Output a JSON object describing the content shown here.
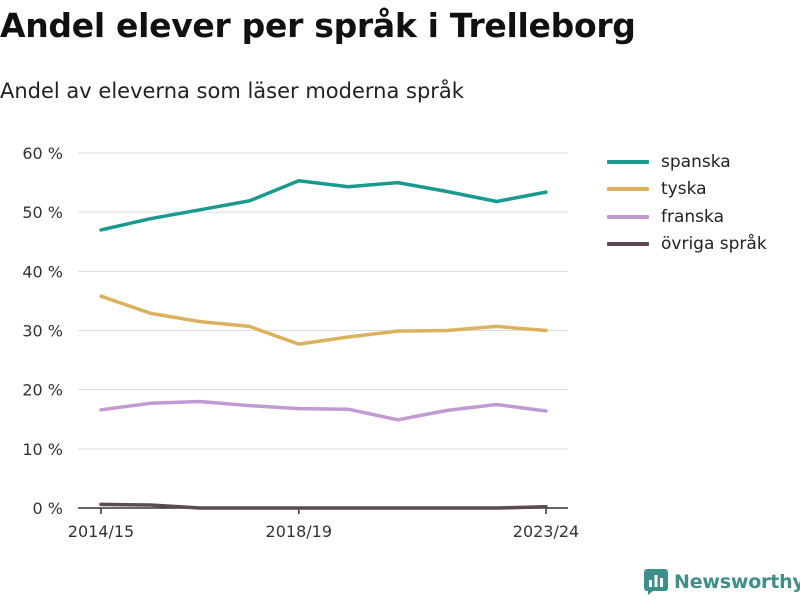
{
  "title": "Andel elever per språk i Trelleborg",
  "subtitle": "Andel av eleverna som läser moderna språk",
  "brand": {
    "label": "Newsworthy",
    "icon": "newsworthy-logo-icon"
  },
  "chart_data": {
    "type": "line",
    "title": "Andel elever per språk i Trelleborg",
    "subtitle": "Andel av eleverna som läser moderna språk",
    "x": [
      "2014/15",
      "2015/16",
      "2016/17",
      "2017/18",
      "2018/19",
      "2019/20",
      "2020/21",
      "2021/22",
      "2022/23",
      "2023/24"
    ],
    "x_tick_labels": [
      "2014/15",
      "2018/19",
      "2023/24"
    ],
    "y_ticks": [
      0,
      10,
      20,
      30,
      40,
      50,
      60
    ],
    "y_tick_labels": [
      "0 %",
      "10 %",
      "20 %",
      "30 %",
      "40 %",
      "50 %",
      "60 %"
    ],
    "ylim": [
      0,
      60
    ],
    "grid": true,
    "legend_position": "right",
    "series": [
      {
        "name": "spanska",
        "color": "#1a9a8f",
        "values": [
          47.0,
          48.9,
          50.4,
          51.9,
          55.3,
          54.3,
          55.0,
          53.5,
          51.8,
          53.4
        ]
      },
      {
        "name": "tyska",
        "color": "#dcb15e",
        "values": [
          35.8,
          32.9,
          31.5,
          30.7,
          27.7,
          28.9,
          29.9,
          30.0,
          30.7,
          30.0
        ]
      },
      {
        "name": "franska",
        "color": "#c09ad0",
        "values": [
          16.6,
          17.7,
          18.0,
          17.3,
          16.8,
          16.7,
          14.9,
          16.5,
          17.5,
          16.4
        ]
      },
      {
        "name": "övriga språk",
        "color": "#5b4a55",
        "values": [
          0.6,
          0.5,
          0.0,
          0.0,
          0.0,
          0.0,
          0.0,
          0.0,
          0.0,
          0.2
        ]
      }
    ]
  }
}
